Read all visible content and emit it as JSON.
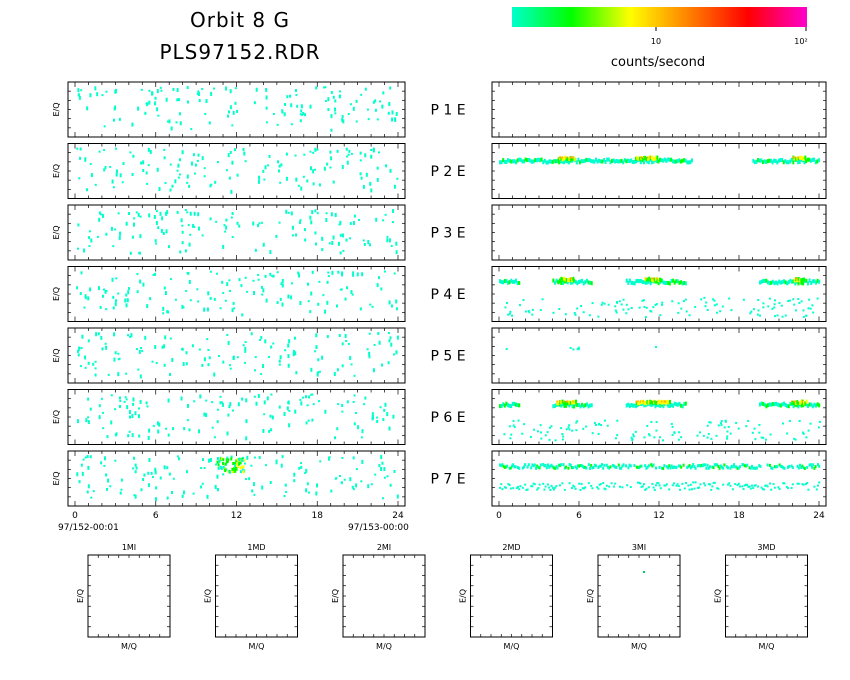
{
  "header": {
    "title_line1": "Orbit 8 G",
    "title_line2": "PLS97152.RDR"
  },
  "colorbar": {
    "label": "counts/second",
    "tick_labels": [
      "10",
      "10²"
    ],
    "colors": [
      "#00ffcc",
      "#00ff00",
      "#ffff00",
      "#ff8000",
      "#ff0000",
      "#ff00cc"
    ]
  },
  "chart_data": {
    "type": "heatmap",
    "x_ticks": [
      "0",
      "6",
      "12",
      "18",
      "24"
    ],
    "x_range": [
      0,
      24
    ],
    "time_start": "97/152-00:01",
    "time_end": "97/153-00:00",
    "ylabel_left": "E/Q",
    "panel_rows": [
      {
        "label": "P  1  E",
        "left_activity": "sparse",
        "right_activity": "none"
      },
      {
        "label": "P  2  E",
        "left_activity": "sparse",
        "right_activity": "band"
      },
      {
        "label": "P  3  E",
        "left_activity": "sparse",
        "right_activity": "none"
      },
      {
        "label": "P  4  E",
        "left_activity": "sparse",
        "right_activity": "band"
      },
      {
        "label": "P  5  E",
        "left_activity": "sparse",
        "right_activity": "few"
      },
      {
        "label": "P  6  E",
        "left_activity": "sparse",
        "right_activity": "band"
      },
      {
        "label": "P  7  E",
        "left_activity": "sparse",
        "right_activity": "dense"
      }
    ],
    "mq_panels": [
      {
        "title": "1MI",
        "xlabel": "M/Q",
        "ylabel": "E/Q"
      },
      {
        "title": "1MD",
        "xlabel": "M/Q",
        "ylabel": "E/Q"
      },
      {
        "title": "2MI",
        "xlabel": "M/Q",
        "ylabel": "E/Q"
      },
      {
        "title": "2MD",
        "xlabel": "M/Q",
        "ylabel": "E/Q"
      },
      {
        "title": "3MI",
        "xlabel": "M/Q",
        "ylabel": "E/Q"
      },
      {
        "title": "3MD",
        "xlabel": "M/Q",
        "ylabel": "E/Q"
      }
    ]
  }
}
